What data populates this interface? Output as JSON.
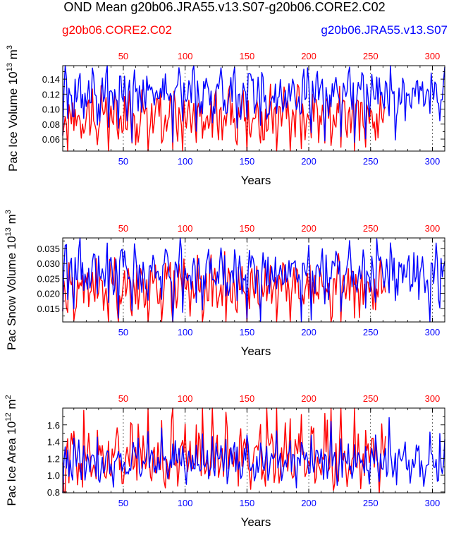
{
  "title": "OND Mean g20b06.JRA55.v13.S07-g20b06.CORE2.C02",
  "legend": {
    "red_label": "g20b06.CORE2.C02",
    "blue_label": "g20b06.JRA55.v13.S07"
  },
  "colors": {
    "red": "#ff0000",
    "blue": "#0000ff"
  },
  "chart_data": [
    {
      "type": "line",
      "ylabel": "Pac Ice Volume 10",
      "ylabel_sup": "13",
      "ylabel_unit": "m",
      "ylabel_unit_sup": "3",
      "xlabel": "Years",
      "xlim": [
        1,
        310
      ],
      "ylim": [
        0.044,
        0.158
      ],
      "yticks": [
        0.06,
        0.08,
        0.1,
        0.12,
        0.14
      ],
      "ytick_labels": [
        "0.06",
        "0.08",
        "0.10",
        "0.12",
        "0.14"
      ],
      "xticks": [
        50,
        100,
        150,
        200,
        250,
        300
      ],
      "xtick_labels": [
        "50",
        "100",
        "150",
        "200",
        "250",
        "300"
      ],
      "series": [
        {
          "name": "g20b06.CORE2.C02",
          "color": "#ff0000",
          "n": 262,
          "cycle": 52,
          "base": 0.092,
          "amp": 0.016,
          "spike": 0.05,
          "spike_dir": -1,
          "seed": 11
        },
        {
          "name": "g20b06.JRA55.v13.S07",
          "color": "#0000ff",
          "n": 310,
          "cycle": 52,
          "base": 0.123,
          "amp": 0.014,
          "spike": 0.045,
          "spike_dir": -1,
          "seed": 23,
          "start": 0.065
        }
      ]
    },
    {
      "type": "line",
      "ylabel": "Pac Snow Volume 10",
      "ylabel_sup": "13",
      "ylabel_unit": "m",
      "ylabel_unit_sup": "3",
      "xlabel": "Years",
      "xlim": [
        1,
        310
      ],
      "ylim": [
        0.0105,
        0.0385
      ],
      "yticks": [
        0.015,
        0.02,
        0.025,
        0.03,
        0.035
      ],
      "ytick_labels": [
        "0.015",
        "0.020",
        "0.025",
        "0.030",
        "0.035"
      ],
      "xticks": [
        50,
        100,
        150,
        200,
        250,
        300
      ],
      "xtick_labels": [
        "50",
        "100",
        "150",
        "200",
        "250",
        "300"
      ],
      "series": [
        {
          "name": "g20b06.CORE2.C02",
          "color": "#ff0000",
          "n": 262,
          "cycle": 52,
          "base": 0.0225,
          "amp": 0.004,
          "spike": 0.011,
          "spike_dir": -1,
          "seed": 37
        },
        {
          "name": "g20b06.JRA55.v13.S07",
          "color": "#0000ff",
          "n": 310,
          "cycle": 52,
          "base": 0.0275,
          "amp": 0.004,
          "spike": 0.012,
          "spike_dir": -1,
          "seed": 41,
          "start": 0.014
        }
      ]
    },
    {
      "type": "line",
      "ylabel": "Pac Ice Area 10",
      "ylabel_sup": "12",
      "ylabel_unit": "m",
      "ylabel_unit_sup": "2",
      "xlabel": "Years",
      "xlim": [
        1,
        310
      ],
      "ylim": [
        0.79,
        1.8
      ],
      "yticks": [
        0.8,
        1.0,
        1.2,
        1.4,
        1.6
      ],
      "ytick_labels": [
        "0.8",
        "1.0",
        "1.2",
        "1.4",
        "1.6"
      ],
      "xticks": [
        50,
        100,
        150,
        200,
        250,
        300
      ],
      "xtick_labels": [
        "50",
        "100",
        "150",
        "200",
        "250",
        "300"
      ],
      "series": [
        {
          "name": "g20b06.CORE2.C02",
          "color": "#ff0000",
          "n": 262,
          "cycle": 52,
          "base": 1.2,
          "amp": 0.16,
          "spike": 0.58,
          "spike_dir": 1,
          "seed": 53
        },
        {
          "name": "g20b06.JRA55.v13.S07",
          "color": "#0000ff",
          "n": 310,
          "cycle": 52,
          "base": 1.15,
          "amp": 0.1,
          "spike": 0.3,
          "spike_dir": 1,
          "seed": 67,
          "start": 0.79
        }
      ]
    }
  ]
}
